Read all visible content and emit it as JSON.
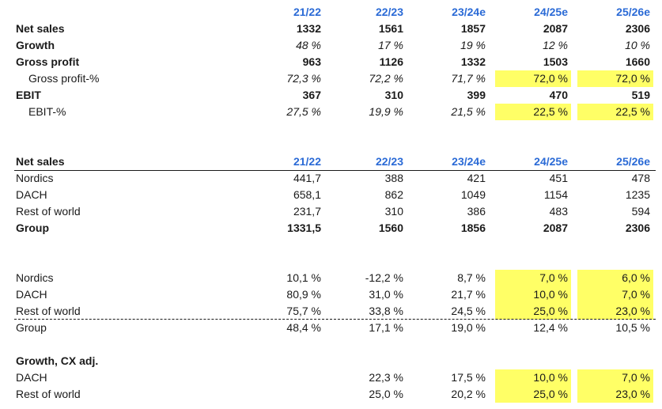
{
  "table1": {
    "headers": [
      "21/22",
      "22/23",
      "23/24e",
      "24/25e",
      "25/26e"
    ],
    "rows": [
      {
        "label": "Net sales",
        "values": [
          "1332",
          "1561",
          "1857",
          "2087",
          "2306"
        ]
      },
      {
        "label": "Growth",
        "values": [
          "48 %",
          "17 %",
          "19 %",
          "12 %",
          "10 %"
        ]
      },
      {
        "label": "Gross profit",
        "values": [
          "963",
          "1126",
          "1332",
          "1503",
          "1660"
        ]
      },
      {
        "label": "Gross profit-%",
        "values": [
          "72,3 %",
          "72,2 %",
          "71,7 %",
          "72,0 %",
          "72,0 %"
        ]
      },
      {
        "label": "EBIT",
        "values": [
          "367",
          "310",
          "399",
          "470",
          "519"
        ]
      },
      {
        "label": "EBIT-%",
        "values": [
          "27,5 %",
          "19,9 %",
          "21,5 %",
          "22,5 %",
          "22,5 %"
        ]
      }
    ]
  },
  "table2": {
    "title": "Net sales",
    "headers": [
      "21/22",
      "22/23",
      "23/24e",
      "24/25e",
      "25/26e"
    ],
    "rows": [
      {
        "label": "Nordics",
        "values": [
          "441,7",
          "388",
          "421",
          "451",
          "478"
        ]
      },
      {
        "label": "DACH",
        "values": [
          "658,1",
          "862",
          "1049",
          "1154",
          "1235"
        ]
      },
      {
        "label": "Rest of world",
        "values": [
          "231,7",
          "310",
          "386",
          "483",
          "594"
        ]
      },
      {
        "label": "Group",
        "values": [
          "1331,5",
          "1560",
          "1856",
          "2087",
          "2306"
        ]
      }
    ]
  },
  "table3": {
    "rows": [
      {
        "label": "Nordics",
        "values": [
          "10,1 %",
          "-12,2 %",
          "8,7 %",
          "7,0 %",
          "6,0 %"
        ]
      },
      {
        "label": "DACH",
        "values": [
          "80,9 %",
          "31,0 %",
          "21,7 %",
          "10,0 %",
          "7,0 %"
        ]
      },
      {
        "label": "Rest of world",
        "values": [
          "75,7 %",
          "33,8 %",
          "24,5 %",
          "25,0 %",
          "23,0 %"
        ]
      },
      {
        "label": "Group",
        "values": [
          "48,4 %",
          "17,1 %",
          "19,0 %",
          "12,4 %",
          "10,5 %"
        ]
      }
    ]
  },
  "table4": {
    "title": "Growth, CX adj.",
    "rows": [
      {
        "label": "DACH",
        "values": [
          "",
          "22,3 %",
          "17,5 %",
          "10,0 %",
          "7,0 %"
        ]
      },
      {
        "label": "Rest of world",
        "values": [
          "",
          "25,0 %",
          "20,2 %",
          "25,0 %",
          "23,0 %"
        ]
      }
    ]
  },
  "colors": {
    "header_blue": "#2a6ad6",
    "highlight_yellow": "#ffff66"
  }
}
